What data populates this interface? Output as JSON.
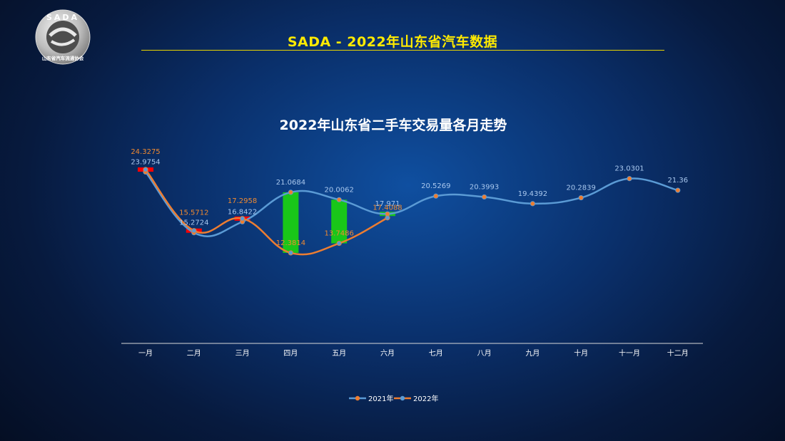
{
  "header": {
    "title": "SADA -  2022年山东省汽车数据",
    "logo_text_top": "SADA",
    "logo_text_bottom": "山东省汽车流通协会"
  },
  "colors": {
    "series_2021": "#5b9bd5",
    "series_2022": "#ed7d31",
    "increase_box": "#19c619",
    "decrease_box": "#ff0000",
    "header_text": "#ffea00"
  },
  "chart_data": {
    "type": "line",
    "title": "2022年山东省二手车交易量各月走势",
    "xlabel": "",
    "ylabel": "",
    "ylim": [
      0,
      26
    ],
    "grid": false,
    "legend_position": "bottom",
    "categories": [
      "一月",
      "二月",
      "三月",
      "四月",
      "五月",
      "六月",
      "七月",
      "八月",
      "九月",
      "十月",
      "十一月",
      "十二月"
    ],
    "series": [
      {
        "name": "2021年",
        "values": [
          23.9754,
          15.2724,
          16.8422,
          21.0684,
          20.0062,
          17.971,
          20.5269,
          20.3993,
          19.4392,
          20.2839,
          23.0301,
          21.36
        ]
      },
      {
        "name": "2022年",
        "values": [
          24.3275,
          15.5712,
          17.2958,
          12.3814,
          13.7486,
          17.4088,
          null,
          null,
          null,
          null,
          null,
          null
        ]
      }
    ],
    "labels_2021": [
      "23.9754",
      "15.2724",
      "16.8422",
      "21.0684",
      "20.0062",
      "17.971",
      "20.5269",
      "20.3993",
      "19.4392",
      "20.2839",
      "23.0301",
      "21.36"
    ],
    "labels_2022": [
      "24.3275",
      "15.5712",
      "17.2958",
      "12.3814",
      "13.7486",
      "17.4088"
    ]
  }
}
